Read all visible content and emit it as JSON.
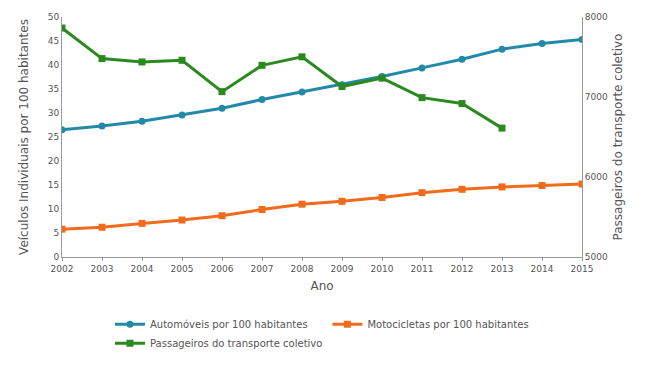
{
  "chart_data": {
    "type": "line",
    "x_label": "Ano",
    "y_label": "Veículos Individuais por 100 habitantes",
    "y2_label": "Passageiros do transporte coletivo",
    "x": [
      2002,
      2003,
      2004,
      2005,
      2006,
      2007,
      2008,
      2009,
      2010,
      2011,
      2012,
      2013,
      2014,
      2015
    ],
    "xlim": [
      2002,
      2015
    ],
    "xticks": [
      2002,
      2003,
      2004,
      2005,
      2006,
      2007,
      2008,
      2009,
      2010,
      2011,
      2012,
      2013,
      2014,
      2015
    ],
    "ylim": [
      0,
      50
    ],
    "yticks": [
      0,
      5,
      10,
      15,
      20,
      25,
      30,
      35,
      40,
      45,
      50
    ],
    "y2lim": [
      5000,
      8000
    ],
    "y2ticks": [
      5000,
      6000,
      7000,
      8000
    ],
    "grid": false,
    "legend": "bottom",
    "series": [
      {
        "name": "Automóveis por 100 habitantes",
        "color": "#2389a8",
        "marker": "circle",
        "values": [
          26.5,
          27.3,
          28.3,
          29.6,
          31.0,
          32.8,
          34.4,
          35.9,
          37.6,
          39.4,
          41.2,
          43.3,
          44.5,
          45.3
        ]
      },
      {
        "name": "Motocicletas por 100 habitantes",
        "color": "#f26b1d",
        "marker": "square",
        "values": [
          5.8,
          6.2,
          7.0,
          7.7,
          8.6,
          9.9,
          11.0,
          11.6,
          12.4,
          13.4,
          14.1,
          14.6,
          14.9,
          15.2
        ]
      },
      {
        "name": "Passageiros do transporte coletivo",
        "color": "#2a8a1e",
        "marker": "square",
        "axis": "y2",
        "values": [
          7862,
          7480,
          7438,
          7459,
          7067,
          7396,
          7502,
          7131,
          7236,
          6992,
          6918,
          6611,
          null,
          null
        ]
      }
    ]
  }
}
